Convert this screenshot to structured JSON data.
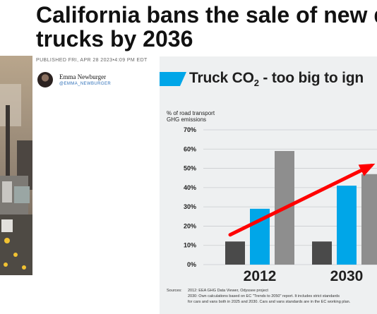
{
  "article": {
    "title_line1": "California bans the sale of new di",
    "title_line2": "trucks by 2036",
    "published": "PUBLISHED FRI, APR 28 2023•4:09 PM EDT",
    "author_name": "Emma Newburger",
    "author_handle": "@EMMA_NEWBURGER"
  },
  "icons": {
    "avatar": "author-avatar",
    "photo": "highway-trucks-photo"
  },
  "chart_data": {
    "type": "bar",
    "title_prefix": "Truck CO",
    "title_subscript": "2",
    "title_suffix": " - too big to ign",
    "ylabel_line1": "% of road transport",
    "ylabel_line2": "GHG emissions",
    "ylim": [
      0,
      70
    ],
    "yticks": [
      "0%",
      "10%",
      "20%",
      "30%",
      "40%",
      "50%",
      "60%",
      "70%"
    ],
    "categories": [
      "2012",
      "2030"
    ],
    "series": [
      {
        "color": "#4a4a4a",
        "values": [
          12,
          12
        ]
      },
      {
        "color": "#00a6e8",
        "values": [
          29,
          41
        ]
      },
      {
        "color": "#8e8e8e",
        "values": [
          59,
          47
        ]
      }
    ],
    "trend_color": "#ff0000",
    "accent_color": "#00a6e8",
    "sources_label": "Sources:",
    "sources_line1": "2012: EEA GHG Data Viewer, Odyssee project",
    "sources_line2": "2030: Own calculations based on EC \"Trends to 2050\" report. It includes strict standards",
    "sources_line3": "for cars and vans both in 2025 and 2030. Cars and vans standards are in the EC working plan."
  }
}
